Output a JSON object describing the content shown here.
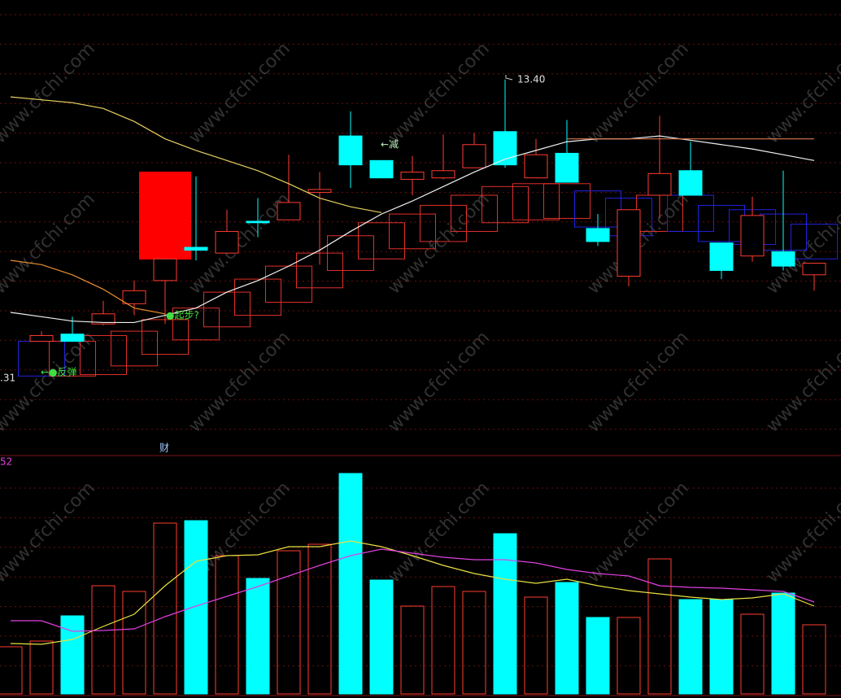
{
  "chart_data": {
    "type": "candlestick",
    "categories": [
      null,
      null,
      null,
      null,
      null,
      null,
      null,
      null,
      null,
      null,
      null,
      null,
      null,
      null,
      null,
      null,
      null,
      null,
      null,
      null,
      null,
      null,
      null,
      null,
      null,
      null,
      null
    ],
    "ylim": [
      10.8,
      13.95
    ],
    "up_color": "#ff3b30",
    "down_color": "#00ffff",
    "open": [
      null,
      11.59,
      11.64,
      11.71,
      11.85,
      12.01,
      12.24,
      12.2,
      12.42,
      12.43,
      12.62,
      13.01,
      12.84,
      12.71,
      12.72,
      12.79,
      13.04,
      12.72,
      12.89,
      12.37,
      12.04,
      12.6,
      12.77,
      12.27,
      12.18,
      12.21,
      12.05
    ],
    "high": [
      null,
      11.66,
      11.76,
      11.87,
      12.01,
      12.16,
      12.73,
      12.5,
      12.58,
      12.88,
      12.76,
      13.18,
      12.84,
      12.87,
      13.02,
      13.03,
      13.4,
      12.99,
      13.12,
      12.47,
      12.5,
      13.15,
      12.97,
      12.27,
      12.59,
      12.77,
      12.13
    ],
    "low": [
      null,
      11.59,
      11.59,
      11.7,
      11.77,
      11.71,
      12.15,
      12.2,
      12.31,
      12.43,
      12.12,
      12.65,
      12.72,
      12.6,
      12.71,
      12.79,
      12.79,
      12.72,
      12.69,
      12.25,
      11.97,
      12.44,
      12.6,
      12.02,
      12.14,
      12.08,
      11.94
    ],
    "close": [
      null,
      11.63,
      11.59,
      11.78,
      11.94,
      12.16,
      12.22,
      12.35,
      12.41,
      12.55,
      12.64,
      12.81,
      12.72,
      12.76,
      12.77,
      12.95,
      12.81,
      12.88,
      12.69,
      12.28,
      12.5,
      12.75,
      12.6,
      12.08,
      12.46,
      12.11,
      12.13
    ],
    "lines": [
      {
        "color": "#e8d060",
        "values": [
          13.28,
          13.26,
          13.24,
          13.2,
          13.11,
          12.99,
          12.91,
          12.84,
          12.77,
          12.68,
          12.58,
          12.52,
          12.48,
          null,
          null,
          null,
          null,
          null,
          null,
          null,
          null,
          null,
          null,
          null,
          null,
          null,
          null
        ]
      },
      {
        "color": "#f0f0f0",
        "values": [
          11.79,
          11.76,
          11.73,
          11.72,
          11.72,
          11.77,
          11.82,
          11.93,
          12.01,
          12.11,
          12.22,
          12.35,
          12.47,
          12.56,
          12.66,
          12.76,
          12.85,
          12.91,
          12.97,
          12.99,
          12.99,
          13.01,
          12.98,
          12.95,
          12.92,
          12.88,
          12.84
        ]
      },
      {
        "color": "#e89030",
        "values": [
          12.15,
          12.12,
          12.05,
          11.95,
          11.82,
          11.78,
          null,
          null,
          null,
          null,
          null,
          null,
          null,
          null,
          null,
          null,
          null,
          null,
          null,
          null,
          null,
          null,
          null,
          null,
          null,
          null,
          null
        ]
      },
      {
        "color": "#d87a50",
        "values": [
          null,
          null,
          null,
          null,
          null,
          null,
          null,
          null,
          null,
          null,
          null,
          null,
          null,
          null,
          null,
          null,
          null,
          null,
          12.99,
          12.99,
          12.99,
          12.99,
          12.99,
          12.99,
          12.99,
          12.99,
          12.99
        ]
      }
    ],
    "boxes": {
      "high": [
        null,
        11.59,
        11.59,
        11.63,
        11.66,
        11.74,
        11.82,
        11.93,
        12.02,
        12.11,
        12.2,
        12.32,
        12.41,
        12.47,
        12.53,
        12.6,
        12.66,
        12.68,
        12.68,
        12.63,
        12.58,
        12.6,
        12.6,
        12.53,
        12.5,
        12.47,
        12.4
      ],
      "low": [
        null,
        11.35,
        11.35,
        11.36,
        11.42,
        11.5,
        11.6,
        11.69,
        11.77,
        11.86,
        11.96,
        12.08,
        12.16,
        12.23,
        12.28,
        12.35,
        12.41,
        12.43,
        12.44,
        12.38,
        12.32,
        12.35,
        12.35,
        12.28,
        12.26,
        12.22,
        12.16
      ],
      "colors": [
        null,
        "#2222dd",
        "#e0302a",
        "#e0302a",
        "#e0302a",
        "#e0302a",
        "#e0302a",
        "#e0302a",
        "#e0302a",
        "#e0302a",
        "#e0302a",
        "#e0302a",
        "#e0302a",
        "#e0302a",
        "#e0302a",
        "#e0302a",
        "#e0302a",
        "#e0302a",
        "#e0302a",
        "#2222dd",
        "#2222dd",
        "#e0302a",
        "#2222dd",
        "#2222dd",
        "#2222dd",
        "#2222dd",
        "#2222dd"
      ]
    },
    "volume": {
      "ylim": [
        0,
        288
      ],
      "values": [
        58,
        65,
        96,
        133,
        126,
        210,
        213,
        170,
        142,
        176,
        184,
        271,
        140,
        108,
        132,
        126,
        197,
        119,
        137,
        94,
        94,
        166,
        116,
        116,
        98,
        124,
        85
      ],
      "colors": [
        "#ff3b30",
        "#ff3b30",
        "#00ffff",
        "#ff3b30",
        "#ff3b30",
        "#ff3b30",
        "#00ffff",
        "#ff3b30",
        "#00ffff",
        "#ff3b30",
        "#ff3b30",
        "#00ffff",
        "#00ffff",
        "#ff3b30",
        "#ff3b30",
        "#ff3b30",
        "#00ffff",
        "#ff3b30",
        "#00ffff",
        "#00ffff",
        "#ff3b30",
        "#ff3b30",
        "#00ffff",
        "#00ffff",
        "#ff3b30",
        "#00ffff",
        "#ff3b30"
      ],
      "lines": [
        {
          "color": "#e8e040",
          "values": [
            62,
            61,
            67,
            83,
            98,
            133,
            163,
            170,
            171,
            181,
            181,
            188,
            181,
            170,
            158,
            148,
            141,
            136,
            141,
            133,
            127,
            123,
            119,
            116,
            118,
            123,
            108
          ]
        },
        {
          "color": "#e040e0",
          "values": [
            90,
            90,
            77,
            78,
            80,
            95,
            108,
            120,
            132,
            145,
            158,
            170,
            178,
            173,
            168,
            165,
            165,
            161,
            153,
            148,
            145,
            133,
            131,
            130,
            128,
            126,
            113
          ]
        }
      ]
    },
    "annotations": {
      "high_price": "13.40",
      "reduce": "←减",
      "start": "●起步?",
      "rebound": "←●反弹",
      "low_price": ".31",
      "volume_label": "52",
      "finance": "财"
    },
    "watermark": "www.cfchi.com"
  }
}
